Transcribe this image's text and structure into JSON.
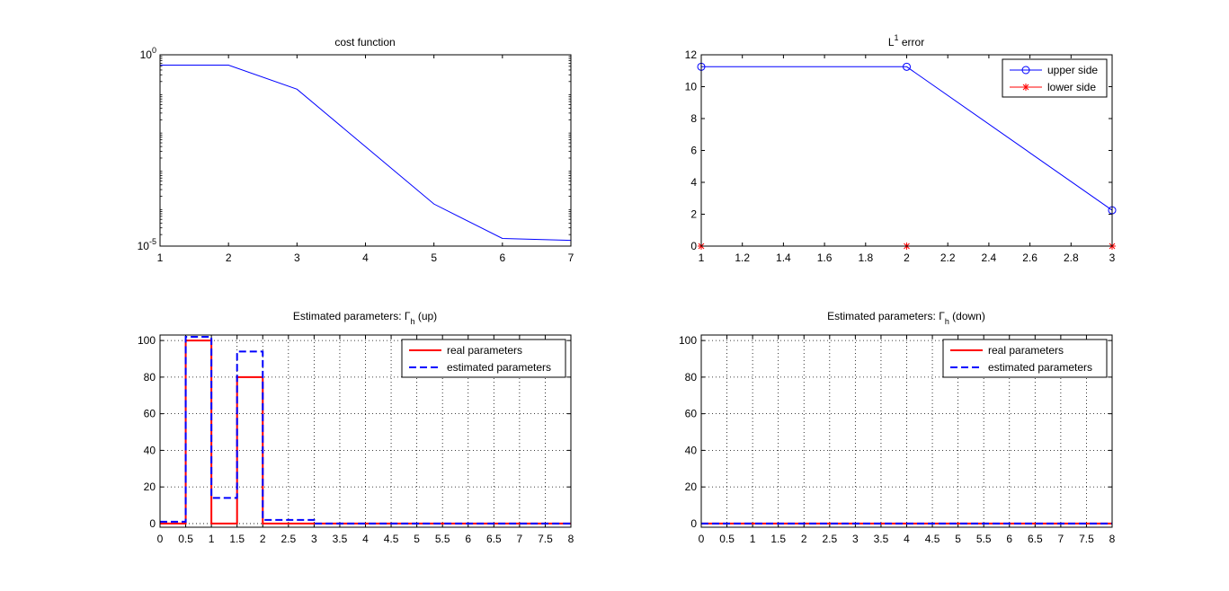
{
  "chart_data": [
    {
      "type": "line",
      "title": "cost function",
      "yscale": "log",
      "xlim": [
        1,
        7
      ],
      "ylim_exp": [
        -5,
        0
      ],
      "xticks": [
        "1",
        "2",
        "3",
        "4",
        "5",
        "6",
        "7"
      ],
      "yticks": [
        {
          "base": "10",
          "exp": "0"
        },
        {
          "base": "10",
          "exp": "-5"
        }
      ],
      "grid": false,
      "series": [
        {
          "color": "#0000ff",
          "x": [
            1,
            2,
            3,
            4,
            5,
            6,
            7
          ],
          "y_log10": [
            -0.27,
            -0.27,
            -0.9,
            -2.4,
            -3.9,
            -4.8,
            -4.85
          ]
        }
      ]
    },
    {
      "type": "line",
      "title_main": "L",
      "title_sup": "1",
      "title_rest": " error",
      "xlim": [
        1,
        3
      ],
      "ylim": [
        0,
        12
      ],
      "xticks": [
        "1",
        "1.2",
        "1.4",
        "1.6",
        "1.8",
        "2",
        "2.2",
        "2.4",
        "2.6",
        "2.8",
        "3"
      ],
      "yticks": [
        "0",
        "2",
        "4",
        "6",
        "8",
        "10",
        "12"
      ],
      "grid": false,
      "legend": "top-right",
      "series": [
        {
          "name": "upper side",
          "color": "#0000ff",
          "marker": "circle",
          "x": [
            1,
            2,
            3
          ],
          "y": [
            11.25,
            11.25,
            2.25
          ]
        },
        {
          "name": "lower side",
          "color": "#ff0000",
          "marker": "star",
          "x": [
            1,
            2,
            3
          ],
          "y": [
            0,
            0,
            0
          ]
        }
      ]
    },
    {
      "type": "line",
      "title_main": "Estimated parameters: Γ",
      "title_sub": "h",
      "title_rest": " (up)",
      "xlim": [
        0,
        8
      ],
      "ylim": [
        -2,
        103
      ],
      "xticks": [
        "0",
        "0.5",
        "1",
        "1.5",
        "2",
        "2.5",
        "3",
        "3.5",
        "4",
        "4.5",
        "5",
        "5.5",
        "6",
        "6.5",
        "7",
        "7.5",
        "8"
      ],
      "yticks": [
        "0",
        "20",
        "40",
        "60",
        "80",
        "100"
      ],
      "grid": true,
      "legend": "top-right",
      "series": [
        {
          "name": "real parameters",
          "color": "#ff0000",
          "style": "solid",
          "x": [
            0,
            0.5,
            0.5,
            1,
            1,
            1.5,
            1.5,
            2,
            2,
            8
          ],
          "y": [
            0,
            0,
            100,
            100,
            0,
            0,
            80,
            80,
            0,
            0
          ]
        },
        {
          "name": "estimated parameters",
          "color": "#0000ff",
          "style": "dashed",
          "x": [
            0,
            0.5,
            0.5,
            1,
            1,
            1.5,
            1.5,
            2,
            2,
            3,
            3,
            8
          ],
          "y": [
            1,
            1,
            102,
            102,
            14,
            14,
            94,
            94,
            2,
            2,
            0,
            0
          ]
        }
      ]
    },
    {
      "type": "line",
      "title_main": "Estimated parameters: Γ",
      "title_sub": "h",
      "title_rest": " (down)",
      "xlim": [
        0,
        8
      ],
      "ylim": [
        -2,
        103
      ],
      "xticks": [
        "0",
        "0.5",
        "1",
        "1.5",
        "2",
        "2.5",
        "3",
        "3.5",
        "4",
        "4.5",
        "5",
        "5.5",
        "6",
        "6.5",
        "7",
        "7.5",
        "8"
      ],
      "yticks": [
        "0",
        "20",
        "40",
        "60",
        "80",
        "100"
      ],
      "grid": true,
      "legend": "top-right",
      "series": [
        {
          "name": "real parameters",
          "color": "#ff0000",
          "style": "solid",
          "x": [
            0,
            8
          ],
          "y": [
            0,
            0
          ]
        },
        {
          "name": "estimated parameters",
          "color": "#0000ff",
          "style": "dashed",
          "x": [
            0,
            8
          ],
          "y": [
            0,
            0
          ]
        }
      ]
    }
  ]
}
